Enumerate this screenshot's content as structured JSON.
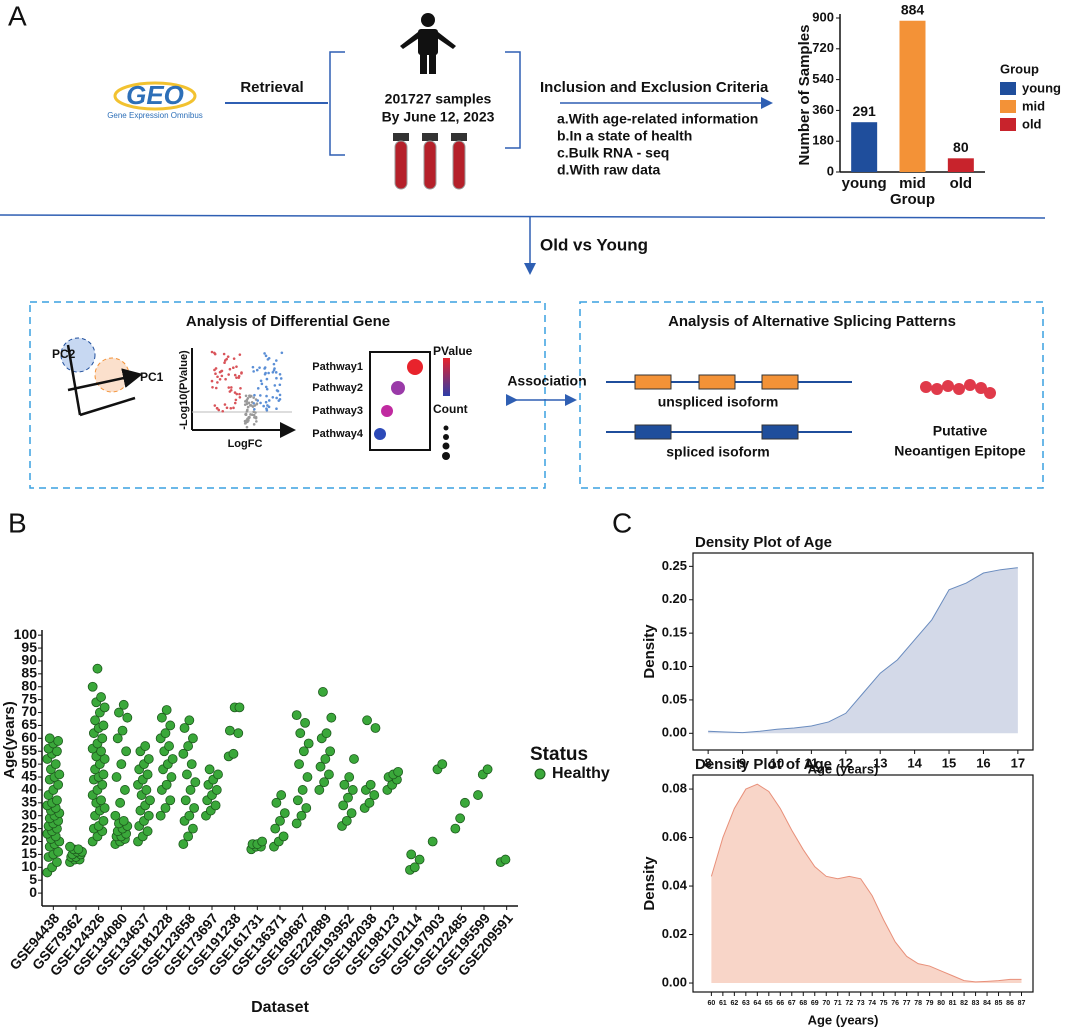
{
  "figure": {
    "panel_labels": [
      "A",
      "B",
      "C"
    ],
    "geo": {
      "logo": "GEO",
      "subtitle": "Gene Expression Omnibus"
    },
    "retrieval": "Retrieval",
    "samples": "201727 samples",
    "date": "By June 12, 2023",
    "criteria_title": "Inclusion and Exclusion Criteria",
    "criteria": [
      "a.With age-related information",
      "b.In a state of health",
      "c.Bulk RNA - seq",
      "d.With raw data"
    ],
    "comparison": "Old vs Young",
    "left_box": {
      "title": "Analysis of Differential Gene",
      "pca_axes": [
        "PC2",
        "PC1"
      ],
      "volcano_axes": [
        "-Log10(PValue)",
        "LogFC"
      ],
      "pathways": [
        "Pathway1",
        "Pathway2",
        "Pathway3",
        "Pathway4"
      ],
      "legend": [
        "PValue",
        "Count"
      ]
    },
    "association": "Association",
    "right_box": {
      "title": "Analysis of Alternative Splicing Patterns",
      "isoforms": [
        "unspliced isoform",
        "spliced isoform"
      ],
      "epitope": [
        "Putative",
        "Neoantigen Epitope"
      ]
    }
  },
  "chart_data": [
    {
      "type": "bar",
      "categories": [
        "young",
        "mid",
        "old"
      ],
      "values": [
        291,
        884,
        80
      ],
      "colors": [
        "#1f4e9c",
        "#f39237",
        "#c8232c"
      ],
      "ylim": [
        0,
        900
      ],
      "yticks": [
        0,
        180,
        360,
        540,
        720,
        900
      ],
      "y_label": "Number of Samples",
      "x_label": "Group",
      "legend_title": "Group"
    },
    {
      "type": "strip",
      "categories": [
        "GSE94438",
        "GSE79362",
        "GSE124326",
        "GSE134080",
        "GSE134637",
        "GSE181228",
        "GSE123658",
        "GSE173697",
        "GSE191238",
        "GSE161731",
        "GSE136371",
        "GSE169687",
        "GSE222889",
        "GSE193952",
        "GSE182038",
        "GSE198123",
        "GSE102114",
        "GSE197903",
        "GSE122485",
        "GSE195599",
        "GSE209591"
      ],
      "series": [
        {
          "name": "Healthy",
          "color": "#3aa83a",
          "values": [
            [
              8,
              10,
              12,
              14,
              15,
              16,
              18,
              19,
              20,
              21,
              22,
              23,
              24,
              25,
              26,
              27,
              28,
              29,
              30,
              31,
              32,
              33,
              34,
              35,
              36,
              38,
              40,
              42,
              44,
              45,
              46,
              48,
              50,
              52,
              54,
              55,
              56,
              58,
              59,
              60
            ],
            [
              12,
              13,
              13,
              14,
              14,
              15,
              15,
              16,
              16,
              17,
              17,
              18
            ],
            [
              20,
              22,
              24,
              25,
              26,
              28,
              30,
              32,
              33,
              35,
              36,
              38,
              40,
              42,
              44,
              45,
              46,
              48,
              50,
              52,
              53,
              55,
              56,
              58,
              60,
              62,
              64,
              65,
              67,
              70,
              72,
              74,
              76,
              80,
              87
            ],
            [
              19,
              20,
              21,
              22,
              22,
              23,
              24,
              25,
              26,
              27,
              28,
              30,
              35,
              40,
              45,
              50,
              55,
              60,
              63,
              68,
              70,
              73
            ],
            [
              20,
              22,
              24,
              26,
              28,
              30,
              32,
              34,
              36,
              38,
              40,
              42,
              44,
              46,
              48,
              50,
              52,
              55,
              57
            ],
            [
              30,
              33,
              36,
              40,
              42,
              45,
              48,
              50,
              52,
              55,
              57,
              60,
              62,
              65,
              68,
              71
            ],
            [
              19,
              22,
              25,
              28,
              30,
              33,
              36,
              40,
              43,
              46,
              50,
              54,
              57,
              60,
              64,
              67
            ],
            [
              30,
              32,
              34,
              36,
              38,
              40,
              42,
              44,
              46,
              48
            ],
            [
              53,
              54,
              62,
              63,
              72,
              72
            ],
            [
              17,
              18,
              18,
              19,
              19,
              20
            ],
            [
              18,
              20,
              22,
              25,
              28,
              31,
              35,
              38
            ],
            [
              27,
              30,
              33,
              36,
              40,
              45,
              50,
              55,
              58,
              62,
              66,
              69
            ],
            [
              40,
              43,
              46,
              49,
              52,
              55,
              60,
              62,
              68,
              78
            ],
            [
              26,
              28,
              31,
              34,
              37,
              40,
              42,
              45,
              52
            ],
            [
              33,
              35,
              38,
              40,
              42,
              64,
              67
            ],
            [
              40,
              42,
              44,
              45,
              46,
              47
            ],
            [
              9,
              10,
              13,
              15
            ],
            [
              20,
              48,
              50
            ],
            [
              25,
              29,
              35
            ],
            [
              38,
              46,
              48
            ],
            [
              12,
              13
            ]
          ]
        }
      ],
      "ylim": [
        -5,
        102
      ],
      "yticks": [
        0,
        5,
        10,
        15,
        20,
        25,
        30,
        35,
        40,
        45,
        50,
        55,
        60,
        65,
        70,
        75,
        80,
        85,
        90,
        95,
        100
      ],
      "y_label": "Age(years)",
      "x_label": "Dataset",
      "legend_title": "Status"
    },
    {
      "type": "area",
      "title": "Density Plot of Age",
      "x_label": "Age (years)",
      "y_label": "Density",
      "fill": "#d3d9e8",
      "color": "#6a8cbf",
      "x": [
        8,
        8.5,
        9,
        9.5,
        10,
        10.5,
        11,
        11.5,
        12,
        12.5,
        13,
        13.5,
        14,
        14.5,
        15,
        15.5,
        16,
        16.5,
        17
      ],
      "values": [
        0.003,
        0.002,
        0.001,
        0.003,
        0.006,
        0.008,
        0.011,
        0.017,
        0.03,
        0.06,
        0.09,
        0.11,
        0.14,
        0.17,
        0.215,
        0.225,
        0.24,
        0.245,
        0.248
      ],
      "xlim": [
        7.56,
        17.44
      ],
      "xticks": [
        8,
        9,
        10,
        11,
        12,
        13,
        14,
        15,
        16,
        17
      ],
      "ylim": [
        -0.025,
        0.27
      ],
      "yticks": [
        {
          "value": 0,
          "label": "0.00"
        },
        0.05,
        {
          "value": 0.1,
          "label": "0.10"
        },
        0.15,
        {
          "value": 0.2,
          "label": "0.20"
        },
        0.25
      ]
    },
    {
      "type": "area",
      "title": "Density Plot of Age",
      "x_label": "Age (years)",
      "y_label": "Density",
      "fill": "#f8d5c8",
      "color": "#e8907a",
      "x": [
        60,
        61,
        62,
        63,
        64,
        65,
        66,
        67,
        68,
        69,
        70,
        71,
        72,
        73,
        74,
        75,
        76,
        77,
        78,
        79,
        80,
        81,
        82,
        83,
        84,
        85,
        86,
        87
      ],
      "values": [
        0.044,
        0.06,
        0.072,
        0.08,
        0.082,
        0.079,
        0.072,
        0.063,
        0.055,
        0.048,
        0.044,
        0.043,
        0.044,
        0.043,
        0.036,
        0.026,
        0.017,
        0.011,
        0.008,
        0.007,
        0.005,
        0.003,
        0.001,
        0.0005,
        0.0007,
        0.001,
        0.0015,
        0.0015
      ],
      "xlim": [
        58.4,
        88
      ],
      "xticks": [
        60,
        61,
        62,
        63,
        64,
        65,
        66,
        67,
        68,
        69,
        70,
        71,
        72,
        73,
        74,
        75,
        76,
        77,
        78,
        79,
        80,
        81,
        82,
        83,
        84,
        85,
        86,
        87
      ],
      "ylim": [
        -0.0037,
        0.0858
      ],
      "yticks": [
        {
          "value": 0,
          "label": "0.00"
        },
        0.02,
        0.04,
        0.06,
        0.08
      ]
    }
  ]
}
